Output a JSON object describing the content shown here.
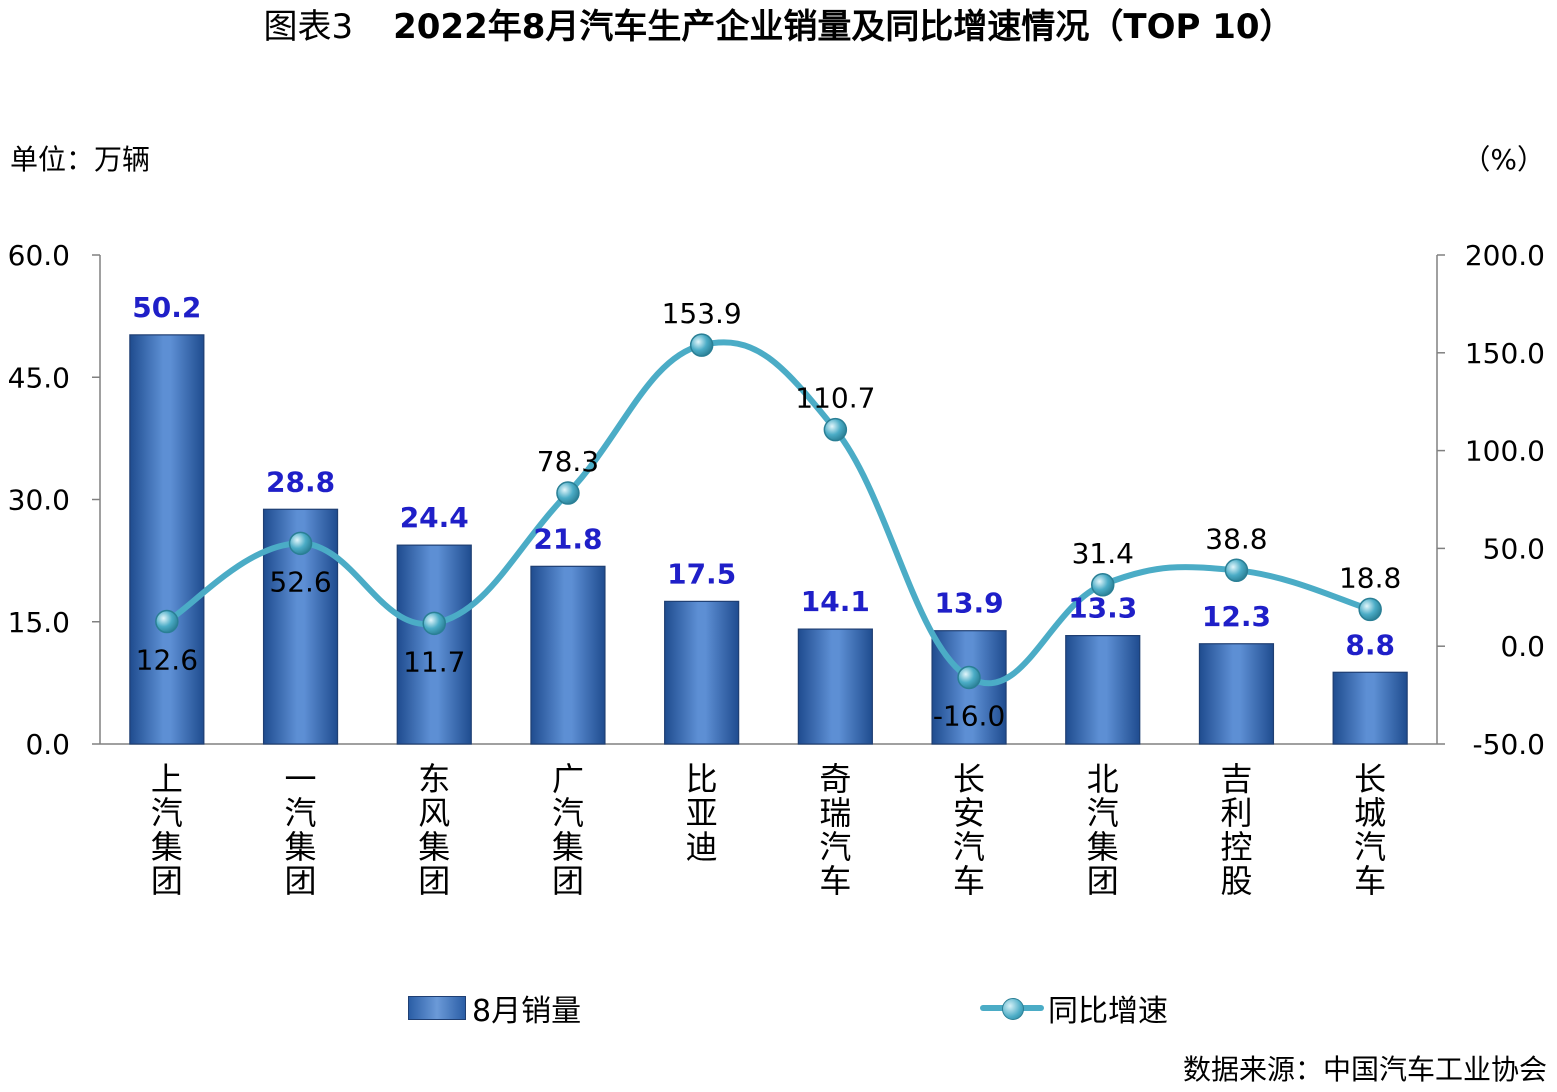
{
  "title": {
    "prefix": "图表3",
    "main": "2022年8月汽车生产企业销量及同比增速情况（TOP 10）"
  },
  "unit_left": "单位：万辆",
  "unit_right": "（%）",
  "source": "数据来源：中国汽车工业协会",
  "legend": {
    "bar_label": "8月销量",
    "line_label": "同比增速"
  },
  "colors": {
    "bar": "#2f62a8",
    "bar_label": "#1f1fc8",
    "line": "#4bacc6"
  },
  "chart_data": {
    "type": "bar+line",
    "categories": [
      "上汽集团",
      "一汽集团",
      "东风集团",
      "广汽集团",
      "比亚迪",
      "奇瑞汽车",
      "长安汽车",
      "北汽集团",
      "吉利控股",
      "长城汽车"
    ],
    "series": [
      {
        "name": "8月销量",
        "type": "bar",
        "axis": "left",
        "values": [
          50.2,
          28.8,
          24.4,
          21.8,
          17.5,
          14.1,
          13.9,
          13.3,
          12.3,
          8.8
        ]
      },
      {
        "name": "同比增速",
        "type": "line",
        "axis": "right",
        "values": [
          12.6,
          52.6,
          11.7,
          78.3,
          153.9,
          110.7,
          -16.0,
          31.4,
          38.8,
          18.8
        ]
      }
    ],
    "left_axis": {
      "ylim": [
        0,
        60
      ],
      "ticks": [
        "0.0",
        "15.0",
        "30.0",
        "45.0",
        "60.0"
      ]
    },
    "right_axis": {
      "ylim": [
        -50,
        200
      ],
      "ticks": [
        "-50.0",
        "0.0",
        "50.0",
        "100.0",
        "150.0",
        "200.0"
      ]
    },
    "grid": false,
    "legend_position": "bottom"
  }
}
